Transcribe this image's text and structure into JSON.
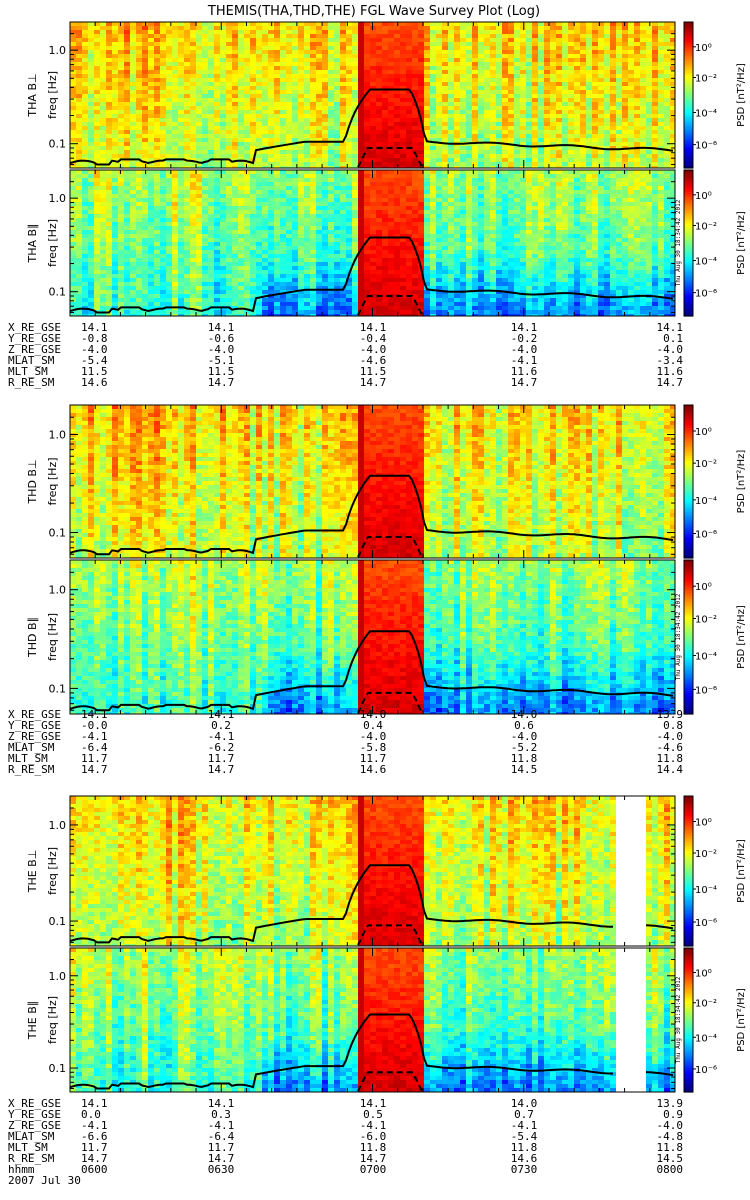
{
  "chart_data": {
    "type": "heatmap",
    "title": "THEMIS(THA,THD,THE) FGL Wave Survey Plot (Log)",
    "x_axis": {
      "label": "hhmm",
      "date": "2007 Jul 30",
      "ticks": [
        "0600",
        "0630",
        "0700",
        "0730",
        "0800"
      ]
    },
    "y_axis": {
      "label": "freq [Hz]",
      "scale": "log",
      "ticks": [
        "1.0",
        "0.1"
      ]
    },
    "colorbar": {
      "label": "PSD [nT²/Hz]",
      "scale": "log",
      "ticks": [
        "10⁰",
        "10⁻²",
        "10⁻⁴",
        "10⁻⁶"
      ]
    },
    "panels": [
      {
        "label": "THA B⊥",
        "stamp": "",
        "probe": "THA"
      },
      {
        "label": "THA B∥",
        "stamp": "Thu Aug 30 18:34:42 2012",
        "probe": "THA"
      },
      {
        "label": "THD B⊥",
        "stamp": "",
        "probe": "THD"
      },
      {
        "label": "THD B∥",
        "stamp": "Thu Aug 30 18:34:42 2012",
        "probe": "THD"
      },
      {
        "label": "THE B⊥",
        "stamp": "",
        "probe": "THE"
      },
      {
        "label": "THE B∥",
        "stamp": "Thu Aug 30 18:34:42 2012",
        "probe": "THE"
      }
    ],
    "ephemeris": [
      {
        "probe": "THA",
        "rows": [
          {
            "name": "X_RE_GSE",
            "values": [
              "14.1",
              "14.1",
              "14.1",
              "14.1",
              "14.1"
            ]
          },
          {
            "name": "Y_RE_GSE",
            "values": [
              "-0.8",
              "-0.6",
              "-0.4",
              "-0.2",
              "0.1"
            ]
          },
          {
            "name": "Z_RE_GSE",
            "values": [
              "-4.0",
              "-4.0",
              "-4.0",
              "-4.0",
              "-4.0"
            ]
          },
          {
            "name": "MLAT_SM",
            "values": [
              "-5.4",
              "-5.1",
              "-4.6",
              "-4.1",
              "-3.4"
            ]
          },
          {
            "name": "MLT_SM",
            "values": [
              "11.5",
              "11.5",
              "11.5",
              "11.6",
              "11.6"
            ]
          },
          {
            "name": "R_RE_SM",
            "values": [
              "14.6",
              "14.7",
              "14.7",
              "14.7",
              "14.7"
            ]
          }
        ]
      },
      {
        "probe": "THD",
        "rows": [
          {
            "name": "X_RE_GSE",
            "values": [
              "14.1",
              "14.1",
              "14.0",
              "14.0",
              "13.9"
            ]
          },
          {
            "name": "Y_RE_GSE",
            "values": [
              "-0.0",
              "0.2",
              "0.4",
              "0.6",
              "0.8"
            ]
          },
          {
            "name": "Z_RE_GSE",
            "values": [
              "-4.1",
              "-4.1",
              "-4.0",
              "-4.0",
              "-4.0"
            ]
          },
          {
            "name": "MLAT_SM",
            "values": [
              "-6.4",
              "-6.2",
              "-5.8",
              "-5.2",
              "-4.6"
            ]
          },
          {
            "name": "MLT_SM",
            "values": [
              "11.7",
              "11.7",
              "11.7",
              "11.8",
              "11.8"
            ]
          },
          {
            "name": "R_RE_SM",
            "values": [
              "14.7",
              "14.7",
              "14.6",
              "14.5",
              "14.4"
            ]
          }
        ]
      },
      {
        "probe": "THE",
        "rows": [
          {
            "name": "X_RE_GSE",
            "values": [
              "14.1",
              "14.1",
              "14.1",
              "14.0",
              "13.9"
            ]
          },
          {
            "name": "Y_RE_GSE",
            "values": [
              "0.0",
              "0.3",
              "0.5",
              "0.7",
              "0.9"
            ]
          },
          {
            "name": "Z_RE_GSE",
            "values": [
              "-4.1",
              "-4.1",
              "-4.1",
              "-4.1",
              "-4.0"
            ]
          },
          {
            "name": "MLAT_SM",
            "values": [
              "-6.6",
              "-6.4",
              "-6.0",
              "-5.4",
              "-4.8"
            ]
          },
          {
            "name": "MLT_SM",
            "values": [
              "11.7",
              "11.7",
              "11.8",
              "11.8",
              "11.8"
            ]
          },
          {
            "name": "R_RE_SM",
            "values": [
              "14.7",
              "14.7",
              "14.7",
              "14.6",
              "14.5"
            ]
          }
        ]
      }
    ]
  }
}
